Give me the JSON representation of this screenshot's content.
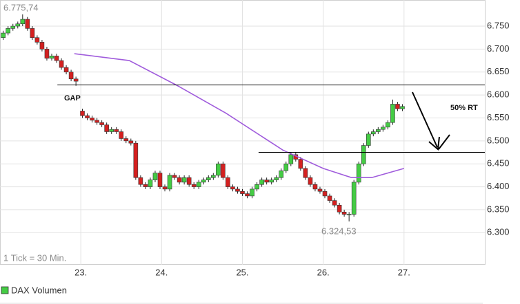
{
  "chart_data": {
    "type": "candlestick",
    "x": [
      22.04,
      22.1,
      22.16,
      22.22,
      22.28,
      22.34,
      22.4,
      22.46,
      22.52,
      22.58,
      22.64,
      22.7,
      22.76,
      22.82,
      22.88,
      22.94,
      23.02,
      23.08,
      23.14,
      23.2,
      23.26,
      23.32,
      23.38,
      23.44,
      23.5,
      23.56,
      23.62,
      23.68,
      23.74,
      23.8,
      23.86,
      23.92,
      23.98,
      24.04,
      24.1,
      24.16,
      24.22,
      24.28,
      24.34,
      24.4,
      24.46,
      24.52,
      24.58,
      24.64,
      24.7,
      24.76,
      24.82,
      24.88,
      24.94,
      25.0,
      25.06,
      25.12,
      25.18,
      25.24,
      25.3,
      25.36,
      25.42,
      25.48,
      25.54,
      25.6,
      25.66,
      25.72,
      25.78,
      25.84,
      25.9,
      25.96,
      26.02,
      26.08,
      26.14,
      26.2,
      26.26,
      26.32,
      26.38,
      26.44,
      26.5,
      26.56,
      26.62,
      26.68,
      26.74,
      26.8,
      26.86,
      26.92,
      26.98
    ],
    "open": [
      6725,
      6735,
      6745,
      6750,
      6755,
      6765,
      6745,
      6725,
      6715,
      6700,
      6680,
      6685,
      6675,
      6660,
      6650,
      6635,
      6565,
      6555,
      6550,
      6545,
      6540,
      6535,
      6520,
      6525,
      6520,
      6505,
      6500,
      6495,
      6420,
      6405,
      6400,
      6415,
      6430,
      6400,
      6395,
      6425,
      6420,
      6410,
      6420,
      6405,
      6400,
      6410,
      6415,
      6420,
      6425,
      6450,
      6420,
      6400,
      6395,
      6390,
      6385,
      6380,
      6395,
      6405,
      6415,
      6410,
      6415,
      6420,
      6435,
      6450,
      6470,
      6460,
      6440,
      6420,
      6405,
      6395,
      6390,
      6380,
      6370,
      6360,
      6345,
      6340,
      6340,
      6410,
      6450,
      6490,
      6515,
      6520,
      6525,
      6530,
      6540,
      6580,
      6570
    ],
    "high": [
      6740,
      6750,
      6755,
      6760,
      6775.74,
      6770,
      6750,
      6730,
      6720,
      6705,
      6690,
      6690,
      6680,
      6665,
      6655,
      6640,
      6570,
      6560,
      6555,
      6550,
      6545,
      6540,
      6530,
      6530,
      6525,
      6510,
      6505,
      6500,
      6425,
      6410,
      6420,
      6435,
      6435,
      6405,
      6430,
      6430,
      6425,
      6425,
      6425,
      6410,
      6415,
      6420,
      6425,
      6430,
      6455,
      6455,
      6425,
      6405,
      6400,
      6395,
      6390,
      6400,
      6410,
      6420,
      6420,
      6420,
      6425,
      6440,
      6455,
      6475,
      6475,
      6465,
      6445,
      6425,
      6410,
      6400,
      6395,
      6385,
      6375,
      6365,
      6350,
      6345,
      6415,
      6455,
      6495,
      6520,
      6525,
      6530,
      6535,
      6545,
      6590,
      6585,
      6580
    ],
    "low": [
      6720,
      6730,
      6740,
      6745,
      6750,
      6740,
      6720,
      6710,
      6695,
      6675,
      6675,
      6670,
      6655,
      6645,
      6630,
      6620,
      6550,
      6545,
      6540,
      6535,
      6530,
      6515,
      6515,
      6515,
      6500,
      6495,
      6490,
      6415,
      6400,
      6395,
      6395,
      6410,
      6395,
      6390,
      6390,
      6415,
      6405,
      6405,
      6400,
      6395,
      6395,
      6405,
      6410,
      6415,
      6420,
      6415,
      6395,
      6390,
      6385,
      6380,
      6375,
      6375,
      6390,
      6400,
      6405,
      6405,
      6410,
      6415,
      6430,
      6445,
      6455,
      6435,
      6415,
      6400,
      6390,
      6385,
      6375,
      6365,
      6355,
      6340,
      6335,
      6324.53,
      6335,
      6405,
      6445,
      6485,
      6510,
      6515,
      6520,
      6525,
      6535,
      6565,
      6565
    ],
    "close": [
      6735,
      6745,
      6750,
      6755,
      6765,
      6745,
      6725,
      6715,
      6700,
      6680,
      6685,
      6675,
      6660,
      6650,
      6635,
      6630,
      6555,
      6550,
      6545,
      6540,
      6535,
      6520,
      6525,
      6520,
      6505,
      6500,
      6495,
      6420,
      6405,
      6400,
      6415,
      6430,
      6400,
      6395,
      6425,
      6420,
      6410,
      6420,
      6405,
      6400,
      6410,
      6415,
      6420,
      6425,
      6450,
      6420,
      6400,
      6395,
      6390,
      6385,
      6380,
      6395,
      6405,
      6415,
      6410,
      6415,
      6420,
      6435,
      6450,
      6470,
      6460,
      6440,
      6420,
      6405,
      6395,
      6390,
      6380,
      6370,
      6360,
      6345,
      6340,
      6340,
      6410,
      6450,
      6490,
      6515,
      6520,
      6525,
      6530,
      6540,
      6580,
      6570,
      6575
    ],
    "up_color": "#44cc44",
    "down_color": "#d42020",
    "ma": {
      "x": [
        22.92,
        23.6,
        24.2,
        24.8,
        25.5,
        26.0,
        26.35,
        26.6,
        27.0
      ],
      "values": [
        6690,
        6675,
        6620,
        6560,
        6480,
        6440,
        6420,
        6420,
        6440
      ],
      "color": "#a05cdc"
    },
    "hlines": [
      {
        "value": 6622,
        "x": [
          22.71,
          28
        ]
      },
      {
        "value": 6475,
        "x": [
          25.2,
          28
        ]
      }
    ],
    "xlim": [
      22,
      28
    ],
    "ylim": [
      6230,
      6807
    ],
    "xticks": [
      {
        "value": 23,
        "label": "23."
      },
      {
        "value": 24,
        "label": "24."
      },
      {
        "value": 25,
        "label": "25."
      },
      {
        "value": 26,
        "label": "26."
      },
      {
        "value": 27,
        "label": "27."
      }
    ],
    "yticks": [
      {
        "value": 6300,
        "label": "6.300"
      },
      {
        "value": 6350,
        "label": "6.350"
      },
      {
        "value": 6400,
        "label": "6.400"
      },
      {
        "value": 6450,
        "label": "6.450"
      },
      {
        "value": 6500,
        "label": "6.500"
      },
      {
        "value": 6550,
        "label": "6.550"
      },
      {
        "value": 6600,
        "label": "6.600"
      },
      {
        "value": 6650,
        "label": "6.650"
      },
      {
        "value": 6700,
        "label": "6.700"
      },
      {
        "value": 6750,
        "label": "6.750"
      }
    ],
    "grid": true,
    "max_label": "6.775,74",
    "min_label": "6.324,53",
    "annotations": [
      "GAP",
      "50% RT"
    ],
    "interval_note": "1 Tick = 30 Min.",
    "legend": {
      "text": "DAX Volumen",
      "color": "#44cc44"
    }
  }
}
